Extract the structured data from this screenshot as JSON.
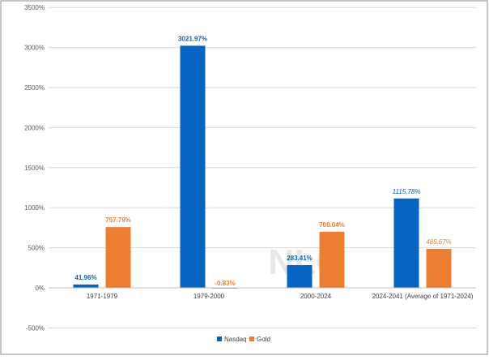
{
  "chart_data": {
    "type": "bar",
    "categories": [
      "1971-1979",
      "1979-2000",
      "2000-2024",
      "2024-2041  (Average of 1971-2024)"
    ],
    "series": [
      {
        "name": "Nasdaq",
        "color": "#0563C1",
        "values": [
          41.96,
          3021.97,
          283.41,
          1115.78
        ],
        "labels": [
          "41.96%",
          "3021.97%",
          "283.41%",
          "1115.78%"
        ],
        "label_style": [
          "bold",
          "bold",
          "bold",
          "italic"
        ]
      },
      {
        "name": "Gold",
        "color": "#ED7D31",
        "values": [
          757.79,
          -0.83,
          700.04,
          485.67
        ],
        "labels": [
          "757.79%",
          "-0.83%",
          "700.04%",
          "485.67%"
        ],
        "label_style": [
          "bold",
          "bold",
          "bold",
          "italic"
        ]
      }
    ],
    "ylim": [
      -500,
      3500
    ],
    "yticks": [
      -500,
      0,
      500,
      1000,
      1500,
      2000,
      2500,
      3000,
      3500
    ],
    "ytick_labels": [
      "-500%",
      "0%",
      "500%",
      "1000%",
      "1500%",
      "2000%",
      "2500%",
      "3000%",
      "3500%"
    ],
    "title": "",
    "xlabel": "",
    "ylabel": "",
    "grid": true,
    "legend_position": "bottom",
    "watermark": "NLO"
  }
}
